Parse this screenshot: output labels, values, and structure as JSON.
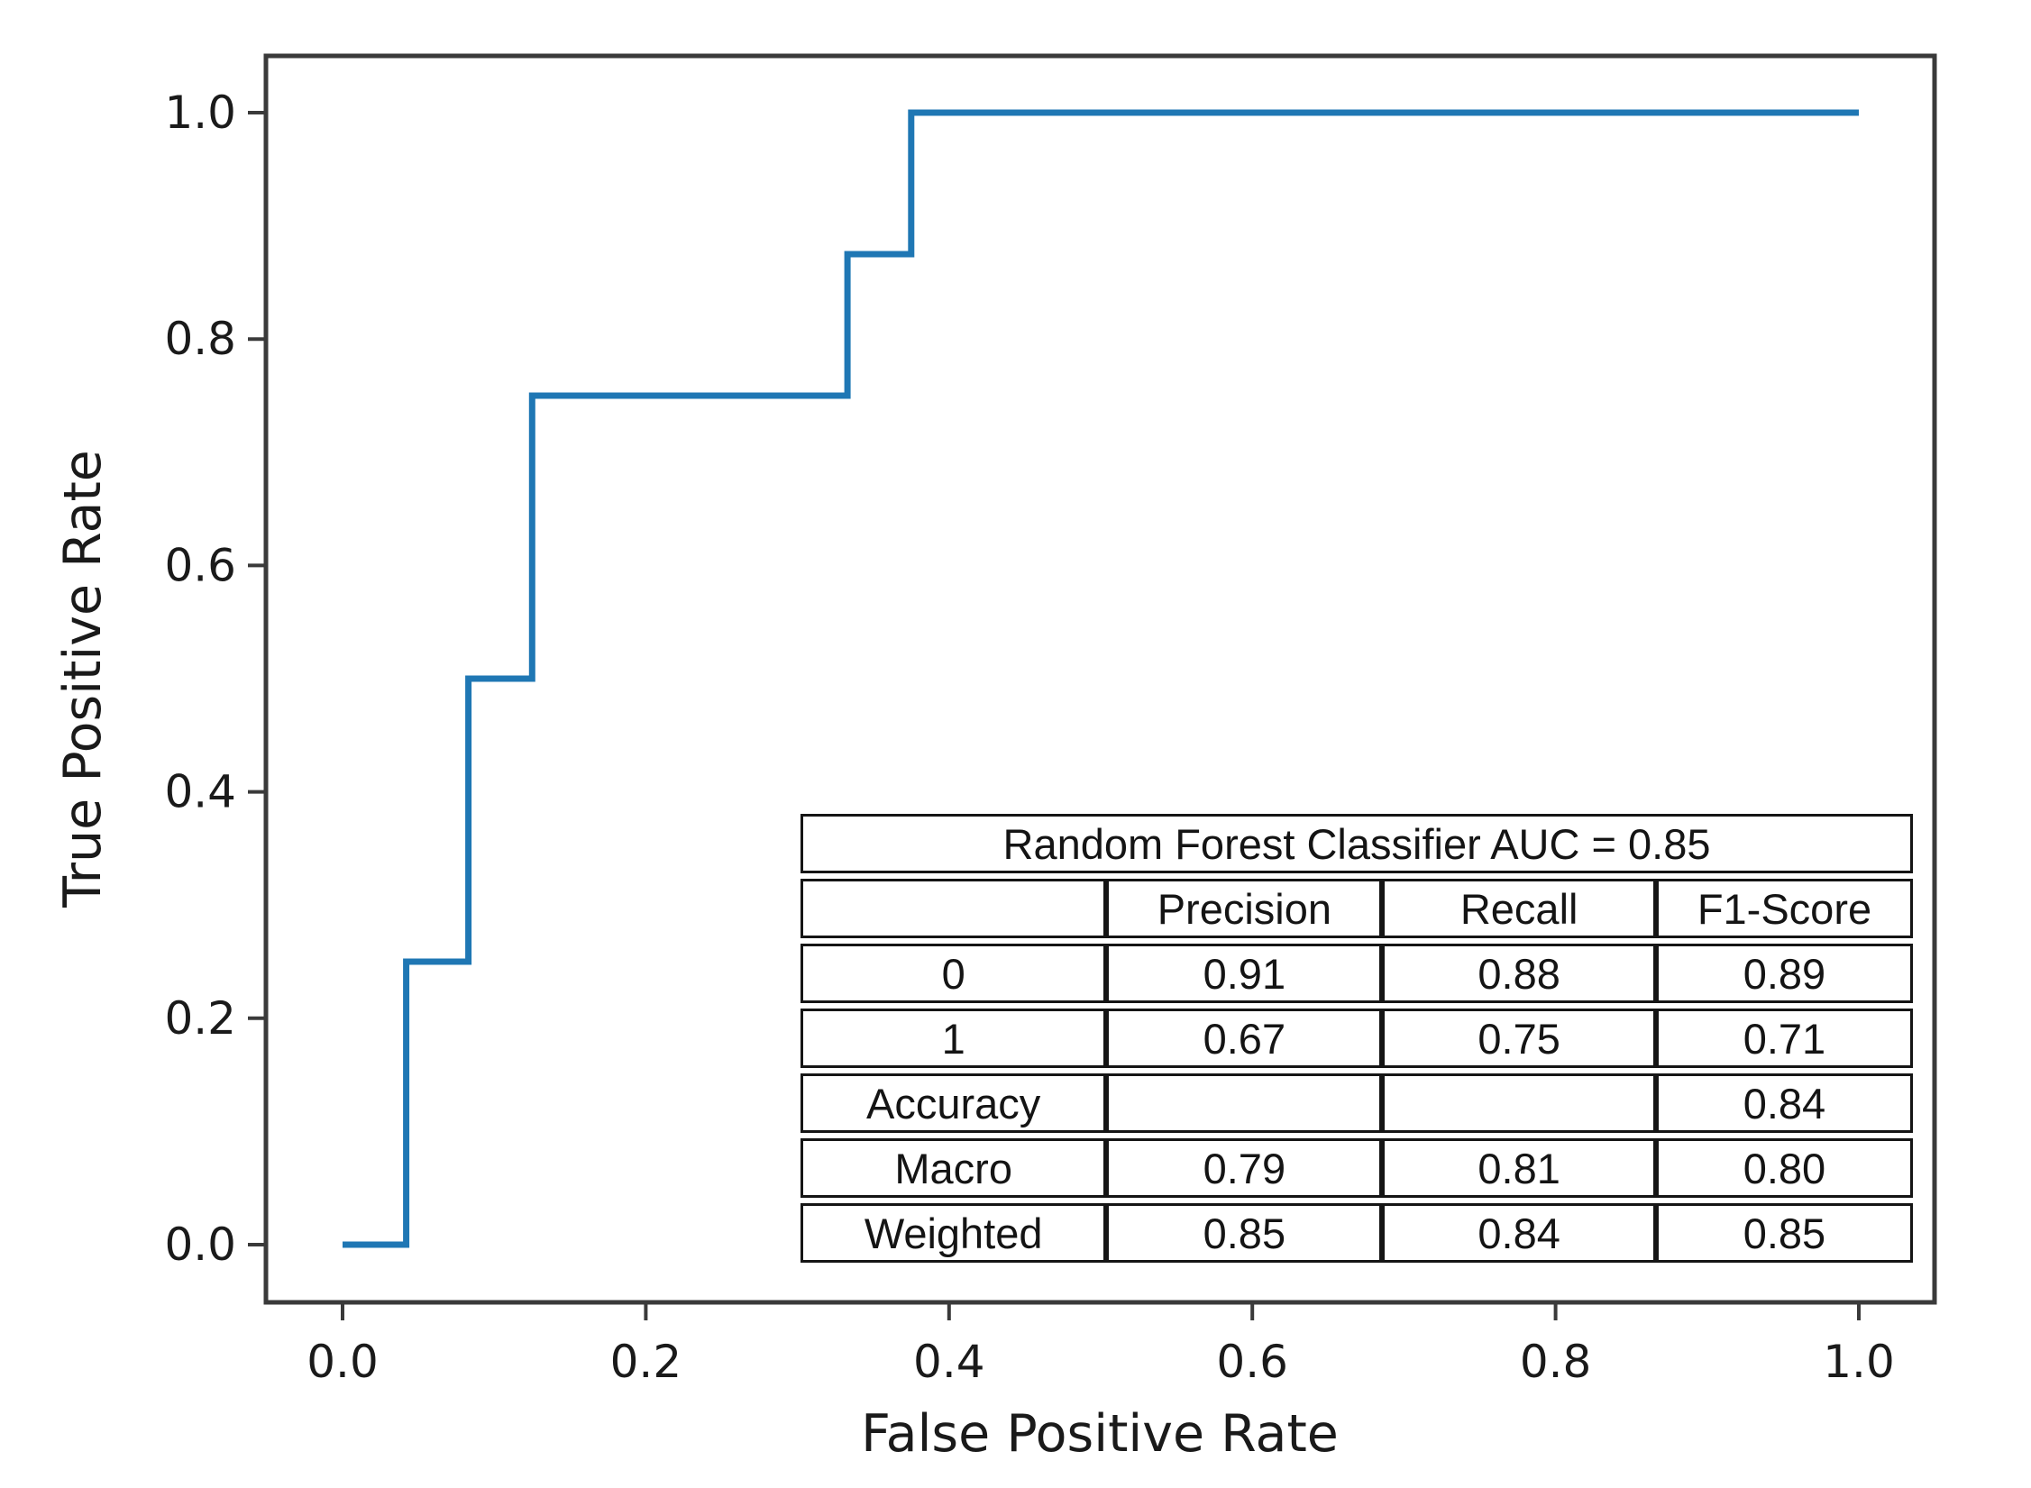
{
  "chart_data": {
    "type": "line",
    "subtype": "roc-step-curve",
    "title": "",
    "xlabel": "False Positive Rate",
    "ylabel": "True Positive Rate",
    "xlim": [
      -0.05,
      1.05
    ],
    "ylim": [
      -0.05,
      1.05
    ],
    "x_ticks": [
      "0.0",
      "0.2",
      "0.4",
      "0.6",
      "0.8",
      "1.0"
    ],
    "y_ticks": [
      "0.0",
      "0.2",
      "0.4",
      "0.6",
      "0.8",
      "1.0"
    ],
    "grid": false,
    "legend_position": "none",
    "line_color": "#1f77b4",
    "axis_color": "#3a3a3a",
    "tick_label_color": "#1a1a1a",
    "series": [
      {
        "name": "Random Forest ROC curve",
        "points": [
          [
            0.0,
            0.0
          ],
          [
            0.042,
            0.0
          ],
          [
            0.042,
            0.25
          ],
          [
            0.083,
            0.25
          ],
          [
            0.083,
            0.5
          ],
          [
            0.125,
            0.5
          ],
          [
            0.125,
            0.75
          ],
          [
            0.333,
            0.75
          ],
          [
            0.333,
            0.875
          ],
          [
            0.375,
            0.875
          ],
          [
            0.375,
            1.0
          ],
          [
            1.0,
            1.0
          ]
        ]
      }
    ],
    "auc": 0.85
  },
  "metrics_table": {
    "title": "Random Forest Classifier AUC = 0.85",
    "columns": [
      "",
      "Precision",
      "Recall",
      "F1-Score"
    ],
    "rows": [
      {
        "label": "0",
        "cells": [
          "0.91",
          "0.88",
          "0.89"
        ]
      },
      {
        "label": "1",
        "cells": [
          "0.67",
          "0.75",
          "0.71"
        ]
      },
      {
        "label": "Accuracy",
        "cells": [
          "",
          "",
          "0.84"
        ]
      },
      {
        "label": "Macro",
        "cells": [
          "0.79",
          "0.81",
          "0.80"
        ]
      },
      {
        "label": "Weighted",
        "cells": [
          "0.85",
          "0.84",
          "0.85"
        ]
      }
    ]
  }
}
